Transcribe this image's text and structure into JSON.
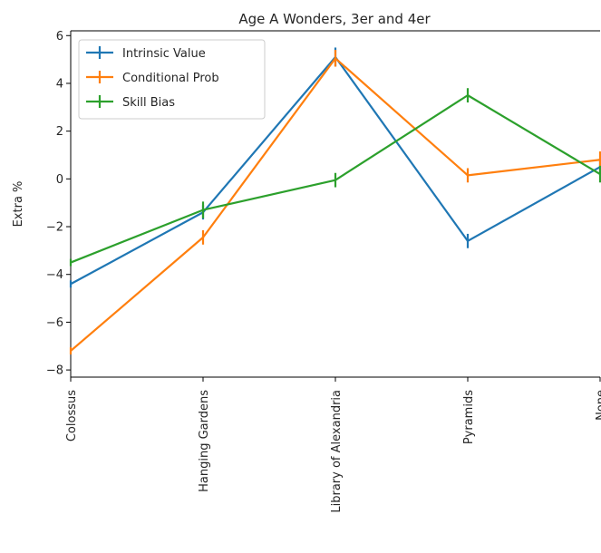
{
  "chart_data": {
    "type": "line",
    "title": "Age A Wonders, 3er and 4er",
    "xlabel": "",
    "ylabel": "Extra %",
    "categories": [
      "Colossus",
      "Hanging Gardens",
      "Library of Alexandria",
      "Pyramids",
      "None"
    ],
    "ylim": [
      -8.3,
      6.2
    ],
    "yticks": [
      -8,
      -6,
      -4,
      -2,
      0,
      2,
      4,
      6
    ],
    "ytick_labels": [
      "−8",
      "−6",
      "−4",
      "−2",
      "0",
      "2",
      "4",
      "6"
    ],
    "grid": false,
    "legend_position": "upper-left",
    "series": [
      {
        "name": "Intrinsic Value",
        "color": "#1f77b4",
        "values": [
          -4.4,
          -1.4,
          5.1,
          -2.6,
          0.5
        ],
        "errors": [
          0.15,
          0.3,
          0.4,
          0.3,
          0.35
        ]
      },
      {
        "name": "Conditional Prob",
        "color": "#ff7f0e",
        "values": [
          -7.2,
          -2.45,
          5.05,
          0.15,
          0.8
        ],
        "errors": [
          0.15,
          0.3,
          0.35,
          0.3,
          0.35
        ]
      },
      {
        "name": "Skill Bias",
        "color": "#2ca02c",
        "values": [
          -3.5,
          -1.3,
          -0.05,
          3.5,
          0.2
        ],
        "errors": [
          0.15,
          0.35,
          0.3,
          0.3,
          0.35
        ]
      }
    ]
  }
}
